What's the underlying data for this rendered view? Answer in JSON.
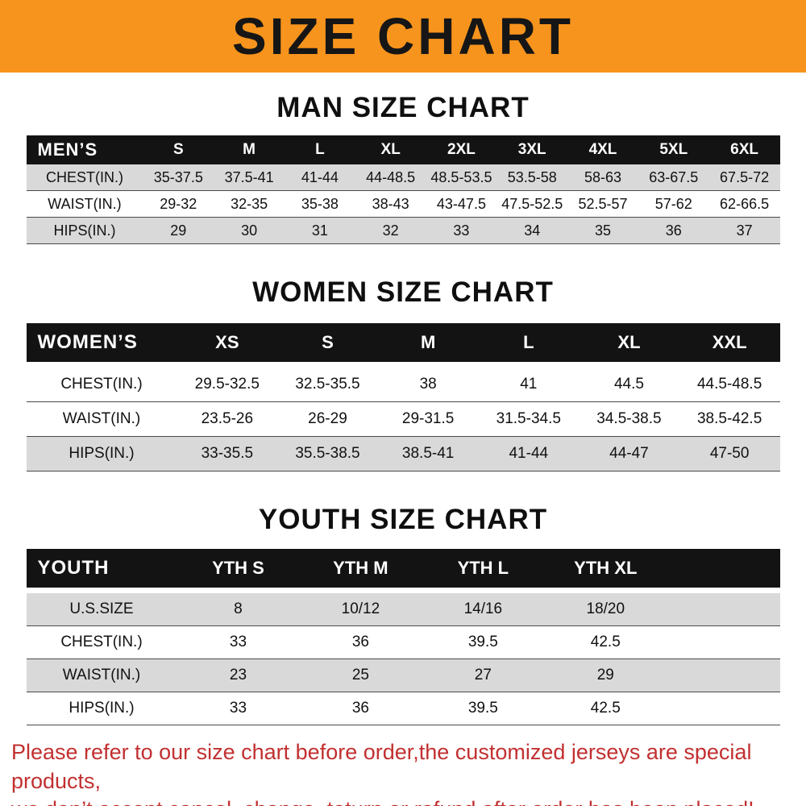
{
  "banner": {
    "title": "SIZE CHART"
  },
  "sections": [
    {
      "heading": "MAN SIZE CHART",
      "header": [
        "MEN’S",
        "S",
        "M",
        "L",
        "XL",
        "2XL",
        "3XL",
        "4XL",
        "5XL",
        "6XL"
      ],
      "rows": [
        [
          "CHEST(IN.)",
          "35-37.5",
          "37.5-41",
          "41-44",
          "44-48.5",
          "48.5-53.5",
          "53.5-58",
          "58-63",
          "63-67.5",
          "67.5-72"
        ],
        [
          "WAIST(IN.)",
          "29-32",
          "32-35",
          "35-38",
          "38-43",
          "43-47.5",
          "47.5-52.5",
          "52.5-57",
          "57-62",
          "62-66.5"
        ],
        [
          "HIPS(IN.)",
          "29",
          "30",
          "31",
          "32",
          "33",
          "34",
          "35",
          "36",
          "37"
        ]
      ]
    },
    {
      "heading": "WOMEN SIZE CHART",
      "header": [
        "WOMEN’S",
        "XS",
        "S",
        "M",
        "L",
        "XL",
        "XXL"
      ],
      "rows": [
        [
          "CHEST(IN.)",
          "29.5-32.5",
          "32.5-35.5",
          "38",
          "41",
          "44.5",
          "44.5-48.5"
        ],
        [
          "WAIST(IN.)",
          "23.5-26",
          "26-29",
          "29-31.5",
          "31.5-34.5",
          "34.5-38.5",
          "38.5-42.5"
        ],
        [
          "HIPS(IN.)",
          "33-35.5",
          "35.5-38.5",
          "38.5-41",
          "41-44",
          "44-47",
          "47-50"
        ]
      ]
    },
    {
      "heading": "YOUTH SIZE CHART",
      "header": [
        "YOUTH",
        "YTH S",
        "YTH M",
        "YTH L",
        "YTH XL"
      ],
      "rows": [
        [
          "U.S.SIZE",
          "8",
          "10/12",
          "14/16",
          "18/20"
        ],
        [
          "CHEST(IN.)",
          "33",
          "36",
          "39.5",
          "42.5"
        ],
        [
          "WAIST(IN.)",
          "23",
          "25",
          "27",
          "29"
        ],
        [
          "HIPS(IN.)",
          "33",
          "36",
          "39.5",
          "42.5"
        ]
      ]
    }
  ],
  "footer": {
    "line1": "Please refer to our size chart before order,the customized jerseys are special products,",
    "line2": "we don’t accept cancel, change, teturn or refund after order has been placed!"
  },
  "colors": {
    "banner_bg": "#f7941d",
    "header_bg": "#131313",
    "row_shade": "#d9d9d9",
    "footer_text": "#c23030"
  }
}
